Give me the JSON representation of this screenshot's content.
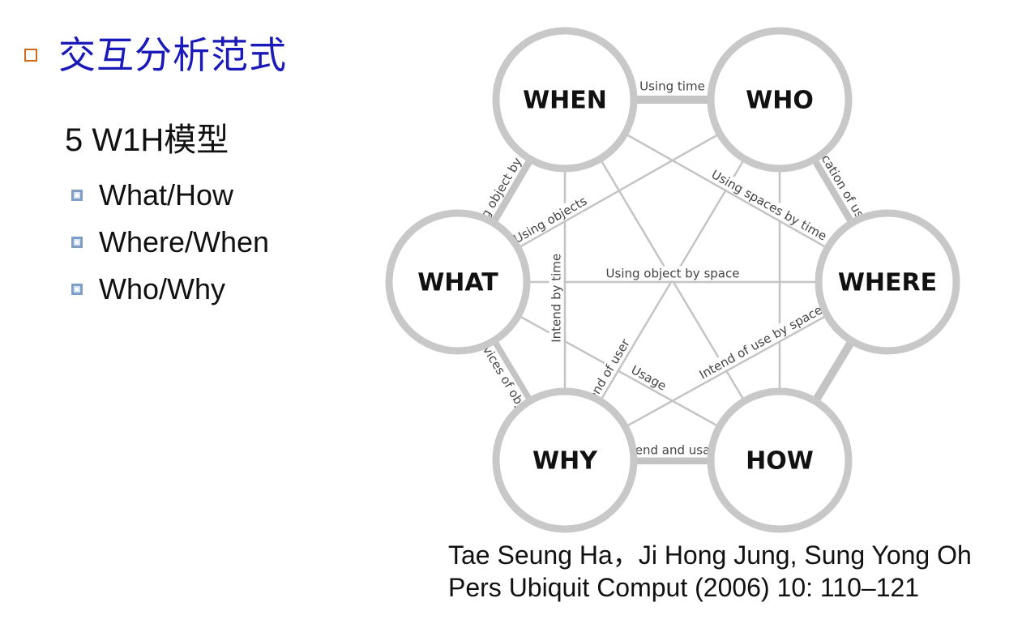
{
  "title": "交互分析范式",
  "subtitle": "5 W1H模型",
  "bullets": [
    "What/How",
    "Where/When",
    "Who/Why"
  ],
  "diagram": {
    "nodes": [
      {
        "id": "when",
        "label": "WHEN"
      },
      {
        "id": "who",
        "label": "WHO"
      },
      {
        "id": "what",
        "label": "WHAT"
      },
      {
        "id": "where",
        "label": "WHERE"
      },
      {
        "id": "why",
        "label": "WHY"
      },
      {
        "id": "how",
        "label": "HOW"
      }
    ],
    "edges": [
      {
        "from": "when",
        "to": "who",
        "label": "Using time",
        "type": "outer"
      },
      {
        "from": "who",
        "to": "where",
        "label": "Location of user",
        "type": "outer"
      },
      {
        "from": "where",
        "to": "how",
        "label": "",
        "type": "outer"
      },
      {
        "from": "how",
        "to": "why",
        "label": "Intend and usage",
        "type": "outer"
      },
      {
        "from": "why",
        "to": "what",
        "label": "Services of object",
        "type": "outer"
      },
      {
        "from": "what",
        "to": "when",
        "label": "Using object by time",
        "type": "outer"
      },
      {
        "from": "what",
        "to": "who",
        "label": "Using objects",
        "type": "inner"
      },
      {
        "from": "when",
        "to": "where",
        "label": "Using spaces by time",
        "type": "inner"
      },
      {
        "from": "what",
        "to": "where",
        "label": "Using object by space",
        "type": "inner"
      },
      {
        "from": "what",
        "to": "how",
        "label": "Usage",
        "type": "inner"
      },
      {
        "from": "why",
        "to": "where",
        "label": "Intend of use by space",
        "type": "inner"
      },
      {
        "from": "why",
        "to": "who",
        "label": "Intend of user",
        "type": "inner"
      },
      {
        "from": "why",
        "to": "when",
        "label": "Intend by time",
        "type": "inner"
      },
      {
        "from": "when",
        "to": "how",
        "label": "",
        "type": "inner"
      },
      {
        "from": "who",
        "to": "how",
        "label": "",
        "type": "inner"
      }
    ]
  },
  "citation": {
    "line1": "Tae Seung Ha，Ji Hong Jung, Sung Yong Oh",
    "line2": "Pers Ubiquit Comput (2006) 10: 110–121"
  },
  "colors": {
    "title": "#1a1ab8",
    "title_bullet": "#d2691e",
    "list_bullet": "#7f9fc6",
    "circle_stroke": "#c8c8c8",
    "edge": "#c4c4c4"
  }
}
